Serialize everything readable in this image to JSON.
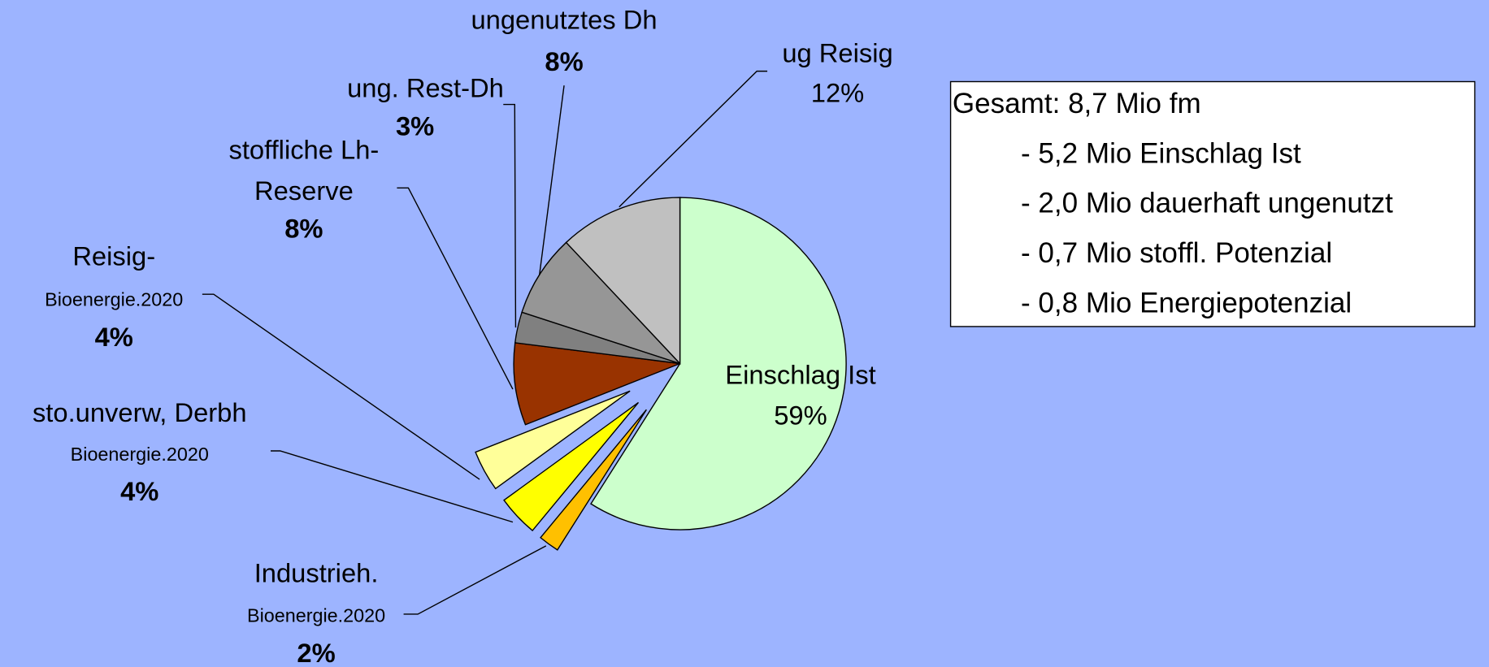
{
  "chart_data": {
    "type": "pie",
    "categories": [
      [
        "Einschlag Ist"
      ],
      [
        "Industrieh.",
        "Bioenergie.2020"
      ],
      [
        "sto.unverw, Derbh",
        "Bioenergie.2020"
      ],
      [
        "Reisig-",
        "Bioenergie.2020"
      ],
      [
        "stoffliche Lh-",
        "Reserve"
      ],
      [
        "ung. Rest-Dh"
      ],
      [
        "ungenutztes Dh"
      ],
      [
        "ug Reisig"
      ]
    ],
    "values": [
      59,
      2,
      4,
      4,
      8,
      3,
      8,
      12
    ],
    "value_labels": [
      "59%",
      "2%",
      "4%",
      "4%",
      "8%",
      "3%",
      "8%",
      "12%"
    ],
    "colors": [
      "#ccffcc",
      "#ffc000",
      "#ffff00",
      "#ffff99",
      "#993300",
      "#808080",
      "#969696",
      "#c0c0c0"
    ],
    "exploded": [
      false,
      true,
      true,
      true,
      false,
      false,
      false,
      false
    ],
    "annotation": [
      "Gesamt: 8,7 Mio fm",
      "- 5,2 Mio Einschlag Ist",
      "- 2,0 Mio dauerhaft ungenutzt",
      "- 0,7 Mio stoffl. Potenzial",
      "- 0,8 Mio Energiepotenzial"
    ]
  }
}
